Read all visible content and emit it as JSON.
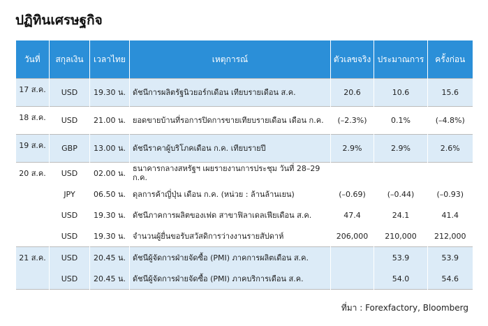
{
  "title": "ปฏิทินเศรษฐกิจ",
  "table": {
    "header": [
      "วันที่",
      "สกุลเงิน",
      "เวลาไทย",
      "เหตุการณ์",
      "ตัวเลขจริง",
      "ประมาณการ",
      "ครั้งก่อน"
    ],
    "groups": [
      {
        "date": "17 ส.ค.",
        "shaded": true,
        "rows": [
          [
            "USD",
            "19.30 น.",
            "ดัชนีการผลิตรัฐนิวยอร์กเดือน เทียบรายเดือน ส.ค.",
            "20.6",
            "10.6",
            "15.6"
          ]
        ]
      },
      {
        "date": "18 ส.ค.",
        "shaded": false,
        "rows": [
          [
            "USD",
            "21.00 น.",
            "ยอดขายบ้านที่รอการปิดการขายเทียบรายเดือน เดือน ก.ค.",
            "(–2.3%)",
            "0.1%",
            "(–4.8%)"
          ]
        ]
      },
      {
        "date": "19 ส.ค.",
        "shaded": true,
        "rows": [
          [
            "GBP",
            "13.00 น.",
            "ดัชนีราคาผู้บริโภคเดือน ก.ค. เทียบรายปี",
            "2.9%",
            "2.9%",
            "2.6%"
          ]
        ]
      },
      {
        "date": "20 ส.ค.",
        "shaded": false,
        "rows": [
          [
            "USD",
            "02.00 น.",
            "ธนาคารกลางสหรัฐฯ เผยรายงานการประชุม วันที่ 28–29 ก.ค.",
            null,
            null,
            null
          ],
          [
            "JPY",
            "06.50 น.",
            "ดุลการค้าญี่ปุ่น เดือน ก.ค. (หน่วย : ล้านล้านเยน)",
            "(–0.69)",
            "(–0.44)",
            "(–0.93)"
          ],
          [
            "USD",
            "19.30 น.",
            "ดัชนีภาคการผลิตของเฟด สาขาฟิลาเดลเฟียเดือน ส.ค.",
            "47.4",
            "24.1",
            "41.4"
          ],
          [
            "USD",
            "19.30 น.",
            "จำนวนผู้ยื่นขอรับสวัสดิการว่างงานรายสัปดาห์",
            "206,000",
            "210,000",
            "212,000"
          ]
        ]
      },
      {
        "date": "21 ส.ค.",
        "shaded": true,
        "rows": [
          [
            "USD",
            "20.45 น.",
            "ดัชนีผู้จัดการฝ่ายจัดซื้อ (PMI) ภาคการผลิตเดือน ส.ค.",
            null,
            "53.9",
            "53.9"
          ],
          [
            "USD",
            "20.45 น.",
            "ดัชนีผู้จัดการฝ่ายจัดซื้อ (PMI) ภาคบริการเดือน ส.ค.",
            null,
            "54.0",
            "54.6"
          ]
        ]
      }
    ]
  },
  "source": "ที่มา : Forexfactory, Bloomberg"
}
